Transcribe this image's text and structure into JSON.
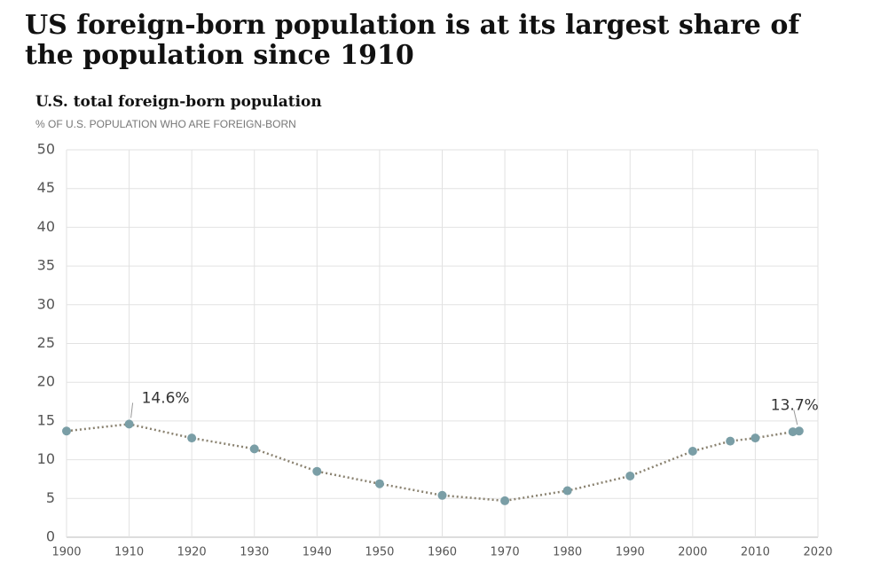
{
  "chart_data": {
    "type": "line",
    "title": "US foreign-born population is at its largest share of the population since 1910",
    "caption": "U.S. total foreign-born population",
    "subtitle": "% OF U.S. POPULATION WHO ARE FOREIGN-BORN",
    "x": [
      1900,
      1910,
      1920,
      1930,
      1940,
      1950,
      1960,
      1970,
      1980,
      1990,
      2000,
      2006,
      2010,
      2016,
      2017
    ],
    "values": [
      13.7,
      14.6,
      12.8,
      11.4,
      8.5,
      6.9,
      5.4,
      4.7,
      6.0,
      7.9,
      11.1,
      12.4,
      12.8,
      13.6,
      13.7
    ],
    "value_labels": [
      null,
      "14.6%",
      null,
      null,
      null,
      null,
      null,
      null,
      null,
      null,
      null,
      null,
      null,
      null,
      "13.7%"
    ],
    "color": "#7a9ea6",
    "line_color": "#8a8270",
    "xlim": [
      1900,
      2020
    ],
    "xticks": [
      1900,
      1910,
      1920,
      1930,
      1940,
      1950,
      1960,
      1970,
      1980,
      1990,
      2000,
      2010,
      2020
    ],
    "ylim": [
      0,
      50
    ],
    "yticks": [
      0,
      5,
      10,
      15,
      20,
      25,
      30,
      35,
      40,
      45,
      50
    ],
    "grid": true
  }
}
